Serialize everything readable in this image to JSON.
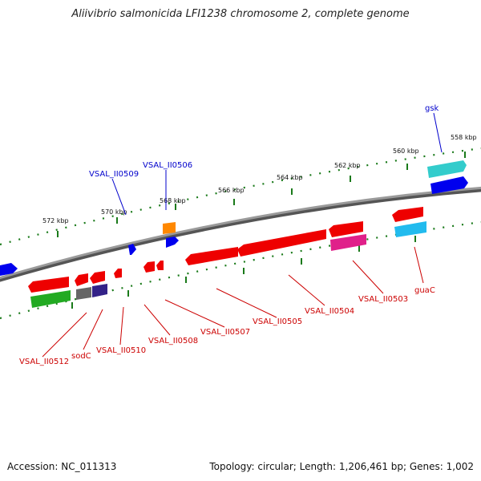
{
  "title": "Aliivibrio salmonicida LFI1238 chromosome 2, complete genome",
  "footer": {
    "accession": "Accession: NC_011313",
    "summary": "Topology: circular; Length: 1,206,461 bp; Genes: 1,002"
  },
  "colors": {
    "backbone": "#8c8c8c",
    "tick": "#1a7a1a",
    "forward_label": "#0000cc",
    "reverse_label": "#cc0000"
  },
  "kbp_labels": [
    {
      "text": "572 kbp",
      "kbp": 572
    },
    {
      "text": "570 kbp",
      "kbp": 570
    },
    {
      "text": "568 kbp",
      "kbp": 568
    },
    {
      "text": "566 kbp",
      "kbp": 566
    },
    {
      "text": "564 kbp",
      "kbp": 564
    },
    {
      "text": "562 kbp",
      "kbp": 562
    },
    {
      "text": "560 kbp",
      "kbp": 560
    },
    {
      "text": "558 kbp",
      "kbp": 558
    }
  ],
  "gene_labels": [
    {
      "text": "gsk",
      "strand": "forward"
    },
    {
      "text": "VSAL_II0509",
      "strand": "forward"
    },
    {
      "text": "VSAL_II0506",
      "strand": "forward"
    },
    {
      "text": "guaC",
      "strand": "reverse"
    },
    {
      "text": "VSAL_II0503",
      "strand": "reverse"
    },
    {
      "text": "VSAL_II0504",
      "strand": "reverse"
    },
    {
      "text": "VSAL_II0505",
      "strand": "reverse"
    },
    {
      "text": "VSAL_II0507",
      "strand": "reverse"
    },
    {
      "text": "VSAL_II0508",
      "strand": "reverse"
    },
    {
      "text": "VSAL_II0510",
      "strand": "reverse"
    },
    {
      "text": "sodC",
      "strand": "reverse"
    },
    {
      "text": "VSAL_II0512",
      "strand": "reverse"
    }
  ]
}
